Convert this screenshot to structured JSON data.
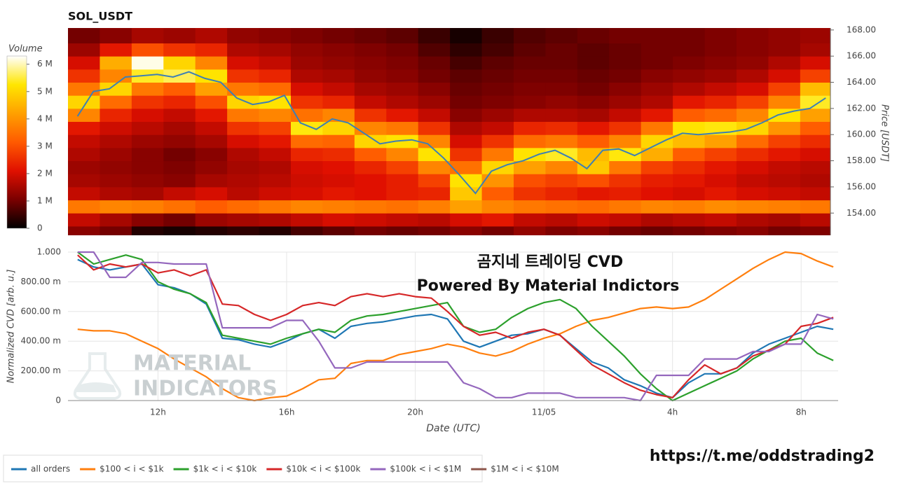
{
  "chart_data": [
    {
      "type": "heatmap",
      "title": "SOL_USDT",
      "colorbar_label": "Volume",
      "ylabel": "Price [USDT]",
      "xlim": [
        9.2,
        33.15
      ],
      "ylim": [
        152.3,
        168.15
      ],
      "yticks": [
        {
          "value": 154,
          "label": "154.00"
        },
        {
          "value": 156,
          "label": "156.00"
        },
        {
          "value": 158,
          "label": "158.00"
        },
        {
          "value": 160,
          "label": "160.00"
        },
        {
          "value": 162,
          "label": "162.00"
        },
        {
          "value": 164,
          "label": "164.00"
        },
        {
          "value": 166,
          "label": "166.00"
        },
        {
          "value": 168,
          "label": "168.00"
        }
      ],
      "zlim": [
        0,
        6.3
      ],
      "zticks": [
        0,
        {
          "value": 1,
          "label": "1 M"
        },
        {
          "value": 2,
          "label": "2 M"
        },
        {
          "value": 3,
          "label": "3 M"
        },
        {
          "value": 4,
          "label": "4 M"
        },
        {
          "value": 5,
          "label": "5 M"
        },
        {
          "value": 6,
          "label": "6 M"
        }
      ],
      "colormap": [
        "#000000",
        "#7a0000",
        "#e01000",
        "#ff5a00",
        "#ffa000",
        "#ffe600",
        "#ffffff"
      ],
      "x_edges": [
        9.2,
        10.2,
        11.2,
        12.2,
        13.2,
        14.2,
        15.2,
        16.2,
        17.2,
        18.2,
        19.2,
        20.2,
        21.2,
        22.2,
        23.2,
        24.2,
        25.2,
        26.2,
        27.2,
        28.2,
        29.2,
        30.2,
        31.2,
        32.2,
        33.2
      ],
      "y_edges": [
        152,
        153,
        154,
        155,
        156,
        157,
        158,
        159,
        160,
        161,
        162,
        163,
        164,
        165,
        166,
        167,
        168.2
      ],
      "values": [
        [
          1.2,
          1.0,
          0.3,
          0.2,
          0.3,
          0.4,
          0.3,
          0.6,
          0.8,
          1.0,
          0.9,
          1.0,
          1.2,
          1.0,
          1.3,
          1.1,
          1.2,
          1.0,
          0.9,
          1.0,
          1.1,
          1.2,
          1.0,
          1.1
        ],
        [
          1.8,
          1.5,
          1.2,
          1.0,
          1.4,
          1.5,
          1.6,
          1.8,
          2.0,
          1.9,
          1.8,
          1.7,
          2.0,
          2.2,
          1.8,
          1.7,
          1.9,
          1.8,
          1.6,
          1.7,
          1.8,
          1.6,
          1.5,
          1.7
        ],
        [
          3.6,
          3.8,
          3.7,
          3.5,
          3.2,
          3.4,
          3.6,
          3.8,
          3.7,
          3.6,
          3.5,
          3.7,
          4.2,
          3.8,
          3.6,
          3.5,
          3.4,
          3.6,
          3.8,
          3.7,
          3.9,
          3.8,
          3.7,
          3.6
        ],
        [
          1.8,
          1.6,
          1.5,
          1.8,
          2.0,
          1.7,
          1.9,
          2.0,
          2.2,
          2.1,
          2.3,
          2.4,
          4.8,
          3.2,
          2.6,
          2.4,
          2.2,
          2.3,
          2.1,
          2.0,
          2.2,
          2.0,
          1.9,
          1.8
        ],
        [
          1.5,
          1.4,
          1.3,
          1.2,
          1.5,
          1.6,
          1.7,
          1.9,
          2.0,
          2.1,
          2.3,
          2.8,
          5.2,
          4.0,
          3.0,
          2.8,
          3.0,
          2.6,
          2.3,
          2.2,
          2.0,
          1.8,
          1.7,
          1.6
        ],
        [
          1.4,
          1.3,
          1.2,
          1.1,
          1.3,
          1.5,
          1.6,
          2.0,
          2.1,
          2.4,
          2.8,
          3.8,
          3.5,
          5.0,
          4.2,
          3.8,
          4.8,
          3.6,
          2.8,
          2.5,
          2.2,
          2.0,
          1.8,
          1.7
        ],
        [
          1.6,
          1.4,
          1.2,
          1.0,
          1.2,
          1.6,
          1.8,
          2.4,
          2.5,
          3.2,
          3.8,
          5.2,
          2.6,
          3.6,
          5.2,
          5.4,
          4.6,
          5.3,
          4.4,
          3.2,
          2.8,
          2.5,
          2.2,
          2.0
        ],
        [
          1.8,
          1.6,
          1.4,
          1.3,
          1.5,
          2.0,
          2.2,
          3.4,
          3.3,
          5.0,
          5.2,
          3.8,
          2.0,
          2.6,
          3.4,
          3.6,
          3.2,
          3.8,
          5.0,
          4.6,
          4.2,
          3.4,
          2.8,
          2.5
        ],
        [
          2.2,
          1.9,
          1.7,
          1.5,
          1.8,
          2.6,
          2.8,
          5.3,
          5.0,
          3.8,
          3.6,
          2.6,
          1.6,
          1.8,
          2.4,
          2.5,
          2.2,
          2.6,
          3.6,
          5.2,
          5.3,
          5.0,
          4.0,
          3.2
        ],
        [
          3.8,
          2.4,
          2.0,
          1.8,
          2.2,
          3.6,
          3.8,
          3.5,
          3.8,
          2.6,
          2.2,
          1.8,
          1.2,
          1.4,
          1.6,
          1.6,
          1.5,
          1.8,
          2.2,
          3.2,
          3.4,
          3.8,
          5.2,
          4.2
        ],
        [
          5.0,
          3.4,
          2.6,
          2.4,
          3.0,
          5.0,
          5.2,
          2.6,
          2.4,
          1.8,
          1.6,
          1.4,
          1.0,
          1.1,
          1.2,
          1.3,
          1.2,
          1.4,
          1.6,
          2.2,
          2.4,
          2.8,
          3.8,
          5.4
        ],
        [
          3.6,
          5.0,
          3.6,
          3.2,
          4.2,
          3.6,
          3.4,
          2.0,
          1.8,
          1.5,
          1.4,
          1.2,
          0.9,
          1.0,
          1.1,
          1.1,
          1.0,
          1.2,
          1.4,
          1.6,
          1.8,
          2.0,
          2.8,
          4.6
        ],
        [
          2.6,
          3.8,
          5.4,
          5.6,
          5.2,
          2.6,
          2.4,
          1.6,
          1.5,
          1.3,
          1.2,
          1.0,
          0.8,
          0.9,
          1.0,
          1.0,
          0.9,
          1.0,
          1.2,
          1.3,
          1.4,
          1.6,
          2.0,
          2.8
        ],
        [
          2.0,
          4.4,
          6.2,
          5.0,
          3.8,
          2.0,
          1.8,
          1.4,
          1.3,
          1.2,
          1.1,
          0.9,
          0.6,
          0.8,
          0.9,
          0.9,
          0.8,
          0.9,
          1.0,
          1.1,
          1.2,
          1.3,
          1.6,
          2.0
        ],
        [
          1.4,
          2.2,
          3.0,
          2.6,
          2.4,
          1.6,
          1.5,
          1.3,
          1.2,
          1.1,
          1.0,
          0.7,
          0.4,
          0.6,
          0.8,
          0.9,
          0.8,
          0.9,
          1.0,
          1.0,
          1.1,
          1.2,
          1.3,
          1.5
        ],
        [
          1.0,
          1.2,
          1.5,
          1.4,
          1.6,
          1.3,
          1.2,
          1.1,
          1.0,
          0.9,
          0.8,
          0.5,
          0.2,
          0.5,
          0.7,
          0.8,
          0.9,
          1.0,
          1.0,
          1.0,
          1.1,
          1.2,
          1.3,
          1.4
        ]
      ],
      "price_color": "#3d7fb5",
      "price_x": [
        9.5,
        10,
        10.5,
        11,
        11.5,
        12,
        12.5,
        13,
        13.5,
        14,
        14.5,
        15,
        15.5,
        16,
        16.5,
        17,
        17.5,
        18,
        18.5,
        19,
        19.5,
        20,
        20.5,
        21,
        21.5,
        22,
        22.5,
        23,
        23.5,
        24,
        24.5,
        25,
        25.5,
        26,
        26.5,
        27,
        27.5,
        28,
        28.5,
        29,
        29.5,
        30,
        30.5,
        31,
        31.5,
        32,
        32.5,
        33
      ],
      "price_values": [
        161.4,
        163.3,
        163.5,
        164.4,
        164.5,
        164.6,
        164.4,
        164.8,
        164.3,
        164.0,
        162.8,
        162.3,
        162.5,
        163.0,
        160.9,
        160.4,
        161.2,
        160.9,
        160.1,
        159.3,
        159.5,
        159.6,
        159.3,
        158.2,
        156.9,
        155.5,
        157.2,
        157.7,
        158.0,
        158.5,
        158.8,
        158.2,
        157.4,
        158.8,
        158.9,
        158.4,
        159.0,
        159.6,
        160.1,
        160.0,
        160.1,
        160.2,
        160.4,
        160.9,
        161.5,
        161.8,
        162.0,
        162.8
      ]
    },
    {
      "type": "line",
      "xlabel": "Date (UTC)",
      "ylabel": "Normalized CVD [arb. u.]",
      "annotations": [
        "곰지네 트레이딩 CVD",
        "Powered By Material Indictors"
      ],
      "watermark": [
        "MATERIAL",
        "INDICATORS"
      ],
      "xlim": [
        9.2,
        33.15
      ],
      "ylim": [
        0,
        1
      ],
      "xticks": [
        {
          "value": 12,
          "label": "12h"
        },
        {
          "value": 16,
          "label": "16h"
        },
        {
          "value": 20,
          "label": "20h"
        },
        {
          "value": 24,
          "label": "11/05"
        },
        {
          "value": 28,
          "label": "4h"
        },
        {
          "value": 32,
          "label": "8h"
        }
      ],
      "yticks": [
        0,
        {
          "value": 0.2,
          "label": "200.00 m"
        },
        {
          "value": 0.4,
          "label": "400.00 m"
        },
        {
          "value": 0.6,
          "label": "600.00 m"
        },
        {
          "value": 0.8,
          "label": "800.00 m"
        },
        {
          "value": 1,
          "label": "1.000"
        }
      ],
      "grid": true,
      "x": [
        9.5,
        10,
        10.5,
        11,
        11.5,
        12,
        12.5,
        13,
        13.5,
        14,
        14.5,
        15,
        15.5,
        16,
        16.5,
        17,
        17.5,
        18,
        18.5,
        19,
        19.5,
        20,
        20.5,
        21,
        21.5,
        22,
        22.5,
        23,
        23.5,
        24,
        24.5,
        25,
        25.5,
        26,
        26.5,
        27,
        27.5,
        28,
        28.5,
        29,
        29.5,
        30,
        30.5,
        31,
        31.5,
        32,
        32.5,
        33
      ],
      "series": [
        {
          "name": "all orders",
          "color": "#1f77b4",
          "values": [
            0.95,
            0.9,
            0.88,
            0.9,
            0.92,
            0.78,
            0.76,
            0.72,
            0.65,
            0.42,
            0.41,
            0.38,
            0.36,
            0.4,
            0.45,
            0.48,
            0.42,
            0.5,
            0.52,
            0.53,
            0.55,
            0.57,
            0.58,
            0.55,
            0.4,
            0.36,
            0.4,
            0.44,
            0.45,
            0.48,
            0.44,
            0.35,
            0.26,
            0.22,
            0.14,
            0.1,
            0.05,
            0.02,
            0.12,
            0.18,
            0.18,
            0.22,
            0.32,
            0.38,
            0.42,
            0.46,
            0.5,
            0.48
          ]
        },
        {
          "name": "$100 < i < $1k",
          "color": "#ff7f0e",
          "values": [
            0.48,
            0.47,
            0.47,
            0.45,
            0.4,
            0.35,
            0.28,
            0.22,
            0.16,
            0.08,
            0.02,
            0.0,
            0.02,
            0.03,
            0.08,
            0.14,
            0.15,
            0.25,
            0.27,
            0.27,
            0.31,
            0.33,
            0.35,
            0.38,
            0.36,
            0.32,
            0.3,
            0.33,
            0.38,
            0.42,
            0.45,
            0.5,
            0.54,
            0.56,
            0.59,
            0.62,
            0.63,
            0.62,
            0.63,
            0.68,
            0.75,
            0.82,
            0.89,
            0.95,
            1.0,
            0.99,
            0.94,
            0.9
          ]
        },
        {
          "name": "$1k < i < $10k",
          "color": "#2ca02c",
          "values": [
            1.0,
            0.92,
            0.95,
            0.98,
            0.95,
            0.8,
            0.75,
            0.72,
            0.66,
            0.44,
            0.42,
            0.4,
            0.38,
            0.42,
            0.45,
            0.48,
            0.46,
            0.54,
            0.57,
            0.58,
            0.6,
            0.62,
            0.64,
            0.66,
            0.5,
            0.46,
            0.48,
            0.56,
            0.62,
            0.66,
            0.68,
            0.62,
            0.5,
            0.4,
            0.3,
            0.18,
            0.08,
            0.0,
            0.05,
            0.1,
            0.15,
            0.2,
            0.28,
            0.34,
            0.4,
            0.42,
            0.32,
            0.27
          ]
        },
        {
          "name": "$10k < i < $100k",
          "color": "#d62728",
          "values": [
            0.98,
            0.88,
            0.92,
            0.9,
            0.92,
            0.86,
            0.88,
            0.84,
            0.88,
            0.65,
            0.64,
            0.58,
            0.54,
            0.58,
            0.64,
            0.66,
            0.64,
            0.7,
            0.72,
            0.7,
            0.72,
            0.7,
            0.69,
            0.6,
            0.5,
            0.44,
            0.46,
            0.42,
            0.46,
            0.48,
            0.44,
            0.34,
            0.24,
            0.18,
            0.12,
            0.07,
            0.04,
            0.02,
            0.14,
            0.24,
            0.18,
            0.22,
            0.3,
            0.34,
            0.38,
            0.5,
            0.52,
            0.56
          ]
        },
        {
          "name": "$100k < i < $1M",
          "color": "#9467bd",
          "values": [
            1.0,
            1.0,
            0.83,
            0.83,
            0.93,
            0.93,
            0.92,
            0.92,
            0.92,
            0.49,
            0.49,
            0.49,
            0.49,
            0.54,
            0.54,
            0.4,
            0.22,
            0.22,
            0.26,
            0.26,
            0.26,
            0.26,
            0.26,
            0.26,
            0.12,
            0.08,
            0.02,
            0.02,
            0.05,
            0.05,
            0.05,
            0.02,
            0.02,
            0.02,
            0.02,
            0.0,
            0.17,
            0.17,
            0.17,
            0.28,
            0.28,
            0.28,
            0.33,
            0.33,
            0.38,
            0.38,
            0.58,
            0.55
          ]
        },
        {
          "name": "$1M < i < $10M",
          "color": "#8c564b"
        }
      ]
    }
  ],
  "link": "https://t.me/oddstrading2"
}
